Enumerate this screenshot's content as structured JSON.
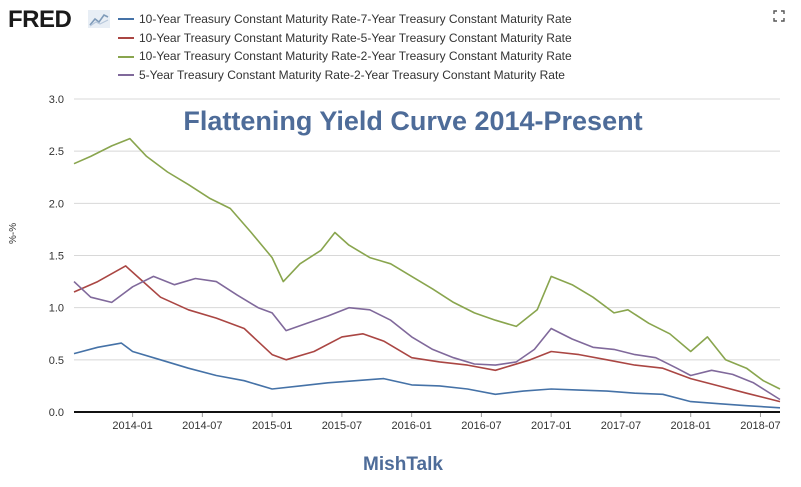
{
  "header": {
    "logo_text": "FRED",
    "logo_icon": "chart-line-icon",
    "fullscreen_icon": "fullscreen-icon"
  },
  "colors": {
    "series": [
      "#4572a7",
      "#aa4643",
      "#89a54e",
      "#80699b"
    ],
    "title": "#4e6c99",
    "watermark": "#4e6c99",
    "grid": "#d8d8d8",
    "axis_text": "#333333"
  },
  "chart_data": {
    "type": "line",
    "title": "Flattening Yield Curve 2014-Present",
    "watermark": "MishTalk",
    "xlabel": "",
    "ylabel": "%-%",
    "ylim": [
      0,
      3.0
    ],
    "yticks": [
      "0.0",
      "0.5",
      "1.0",
      "1.5",
      "2.0",
      "2.5",
      "3.0"
    ],
    "xlim": [
      2013.58,
      2018.64
    ],
    "xticks": [
      {
        "label": "2014-01",
        "x": 2014.0
      },
      {
        "label": "2014-07",
        "x": 2014.5
      },
      {
        "label": "2015-01",
        "x": 2015.0
      },
      {
        "label": "2015-07",
        "x": 2015.5
      },
      {
        "label": "2016-01",
        "x": 2016.0
      },
      {
        "label": "2016-07",
        "x": 2016.5
      },
      {
        "label": "2017-01",
        "x": 2017.0
      },
      {
        "label": "2017-07",
        "x": 2017.5
      },
      {
        "label": "2018-01",
        "x": 2018.0
      },
      {
        "label": "2018-07",
        "x": 2018.5
      }
    ],
    "series": [
      {
        "name": "10-Year Treasury Constant Maturity Rate-7-Year Treasury Constant Maturity Rate",
        "x": [
          2013.58,
          2013.75,
          2013.92,
          2014.0,
          2014.2,
          2014.4,
          2014.6,
          2014.8,
          2015.0,
          2015.2,
          2015.4,
          2015.6,
          2015.8,
          2016.0,
          2016.2,
          2016.4,
          2016.6,
          2016.8,
          2017.0,
          2017.2,
          2017.4,
          2017.6,
          2017.8,
          2018.0,
          2018.2,
          2018.4,
          2018.64
        ],
        "values": [
          0.56,
          0.62,
          0.66,
          0.58,
          0.5,
          0.42,
          0.35,
          0.3,
          0.22,
          0.25,
          0.28,
          0.3,
          0.32,
          0.26,
          0.25,
          0.22,
          0.17,
          0.2,
          0.22,
          0.21,
          0.2,
          0.18,
          0.17,
          0.1,
          0.08,
          0.06,
          0.04
        ]
      },
      {
        "name": "10-Year Treasury Constant Maturity Rate-5-Year Treasury Constant Maturity Rate",
        "x": [
          2013.58,
          2013.75,
          2013.95,
          2014.05,
          2014.2,
          2014.4,
          2014.6,
          2014.8,
          2015.0,
          2015.1,
          2015.3,
          2015.5,
          2015.65,
          2015.8,
          2016.0,
          2016.2,
          2016.4,
          2016.6,
          2016.85,
          2017.0,
          2017.2,
          2017.4,
          2017.6,
          2017.8,
          2018.0,
          2018.2,
          2018.4,
          2018.64
        ],
        "values": [
          1.15,
          1.25,
          1.4,
          1.28,
          1.1,
          0.98,
          0.9,
          0.8,
          0.55,
          0.5,
          0.58,
          0.72,
          0.75,
          0.68,
          0.52,
          0.48,
          0.45,
          0.4,
          0.5,
          0.58,
          0.55,
          0.5,
          0.45,
          0.42,
          0.32,
          0.25,
          0.18,
          0.1
        ]
      },
      {
        "name": "10-Year Treasury Constant Maturity Rate-2-Year Treasury Constant Maturity Rate",
        "x": [
          2013.58,
          2013.7,
          2013.85,
          2013.98,
          2014.1,
          2014.25,
          2014.4,
          2014.55,
          2014.7,
          2014.85,
          2015.0,
          2015.08,
          2015.2,
          2015.35,
          2015.45,
          2015.55,
          2015.7,
          2015.85,
          2016.0,
          2016.15,
          2016.3,
          2016.45,
          2016.6,
          2016.75,
          2016.9,
          2017.0,
          2017.15,
          2017.3,
          2017.45,
          2017.55,
          2017.7,
          2017.85,
          2018.0,
          2018.12,
          2018.25,
          2018.4,
          2018.52,
          2018.64
        ],
        "values": [
          2.38,
          2.45,
          2.55,
          2.62,
          2.45,
          2.3,
          2.18,
          2.05,
          1.95,
          1.72,
          1.48,
          1.25,
          1.42,
          1.55,
          1.72,
          1.6,
          1.48,
          1.42,
          1.3,
          1.18,
          1.05,
          0.95,
          0.88,
          0.82,
          0.98,
          1.3,
          1.22,
          1.1,
          0.95,
          0.98,
          0.85,
          0.75,
          0.58,
          0.72,
          0.5,
          0.42,
          0.3,
          0.22
        ]
      },
      {
        "name": "5-Year Treasury Constant Maturity Rate-2-Year Treasury Constant Maturity Rate",
        "x": [
          2013.58,
          2013.7,
          2013.85,
          2014.0,
          2014.15,
          2014.3,
          2014.45,
          2014.6,
          2014.75,
          2014.9,
          2015.0,
          2015.1,
          2015.25,
          2015.4,
          2015.55,
          2015.7,
          2015.85,
          2016.0,
          2016.15,
          2016.3,
          2016.45,
          2016.6,
          2016.75,
          2016.88,
          2017.0,
          2017.15,
          2017.3,
          2017.45,
          2017.6,
          2017.75,
          2017.9,
          2018.0,
          2018.15,
          2018.3,
          2018.45,
          2018.64
        ],
        "values": [
          1.25,
          1.1,
          1.05,
          1.2,
          1.3,
          1.22,
          1.28,
          1.25,
          1.12,
          1.0,
          0.95,
          0.78,
          0.85,
          0.92,
          1.0,
          0.98,
          0.88,
          0.72,
          0.6,
          0.52,
          0.46,
          0.45,
          0.48,
          0.6,
          0.8,
          0.7,
          0.62,
          0.6,
          0.55,
          0.52,
          0.42,
          0.35,
          0.4,
          0.36,
          0.28,
          0.12
        ]
      }
    ]
  }
}
